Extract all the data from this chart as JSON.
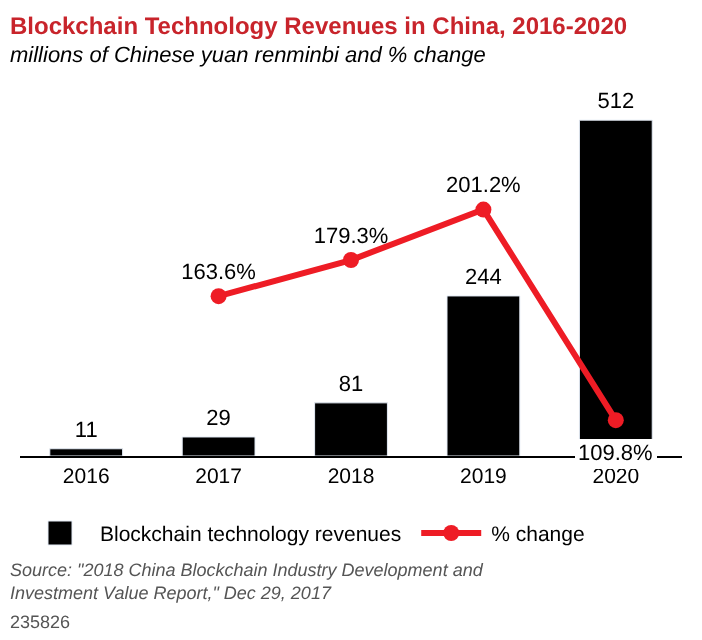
{
  "chart_data": {
    "type": "bar",
    "title": "Blockchain Technology Revenues in China, 2016-2020",
    "subtitle": "millions of Chinese yuan renminbi and % change",
    "categories": [
      "2016",
      "2017",
      "2018",
      "2019",
      "2020"
    ],
    "series": [
      {
        "name": "Blockchain technology revenues",
        "color": "#000000",
        "values": [
          11,
          29,
          81,
          244,
          512
        ]
      },
      {
        "name": "% change",
        "type": "line",
        "axis": "y2",
        "color": "#ee1c25",
        "marker": "circle",
        "values": [
          null,
          163.6,
          179.3,
          201.2,
          109.8
        ],
        "value_labels": [
          null,
          "163.6%",
          "179.3%",
          "201.2%",
          "109.8%"
        ]
      }
    ],
    "data_labels": true,
    "tick_labels": "x",
    "legend": "bottom",
    "annotations": [
      "Source: \"2018 China Blockchain Industry Development and Investment Value Report,\" Dec 29, 2017",
      "235826"
    ]
  }
}
